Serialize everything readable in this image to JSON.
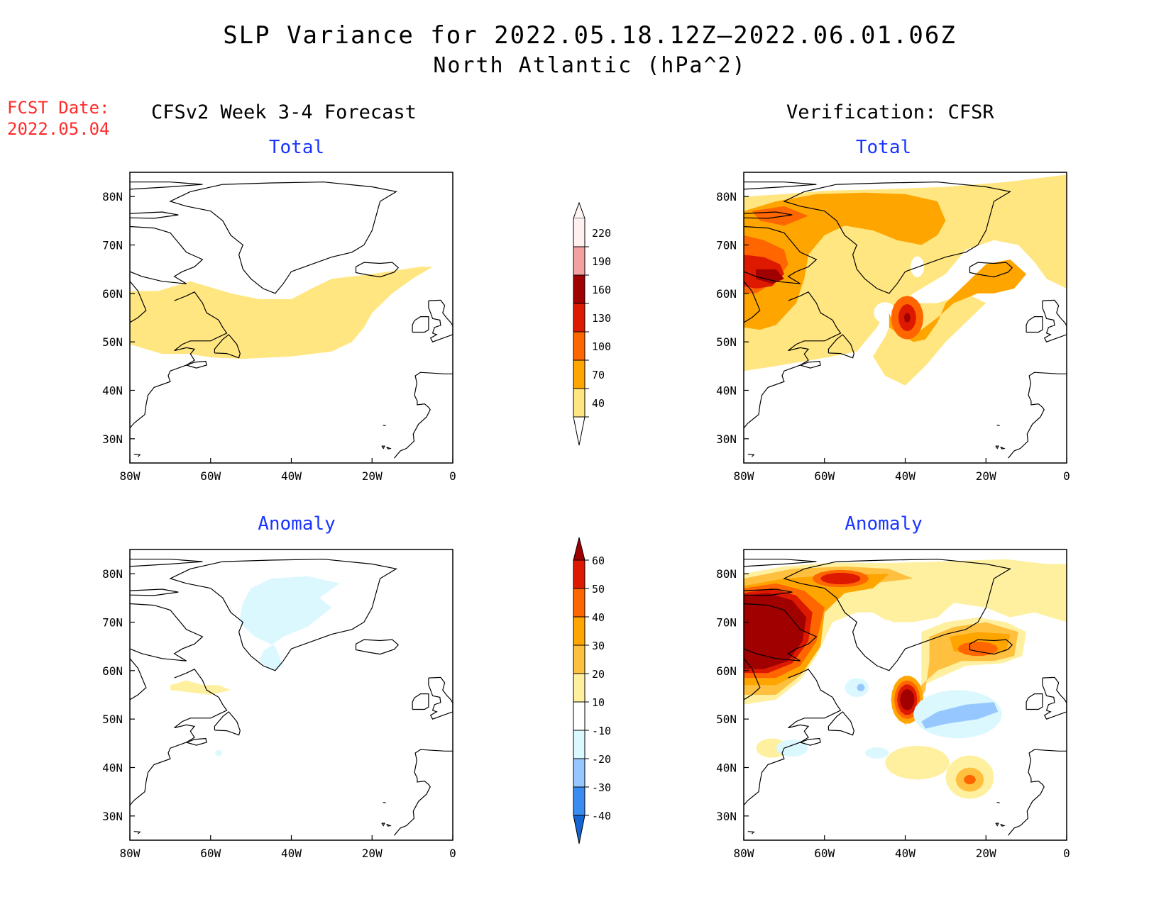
{
  "title": "SLP Variance for 2022.05.18.12Z—2022.06.01.06Z",
  "subtitle": "North Atlantic (hPa^2)",
  "fcst_label": "FCST Date:",
  "fcst_date": "2022.05.04",
  "left_header": "CFSv2 Week 3-4 Forecast",
  "right_header": "Verification: CFSR",
  "panels": [
    {
      "id": "fcst-total",
      "title": "Total"
    },
    {
      "id": "verif-total",
      "title": "Total"
    },
    {
      "id": "fcst-anom",
      "title": "Anomaly"
    },
    {
      "id": "verif-anom",
      "title": "Anomaly"
    }
  ],
  "axes": {
    "lon_labels": [
      "80W",
      "60W",
      "40W",
      "20W",
      "0"
    ],
    "lon_values": [
      -80,
      -60,
      -40,
      -20,
      0
    ],
    "lat_labels": [
      "80N",
      "70N",
      "60N",
      "50N",
      "40N",
      "30N"
    ],
    "lat_values": [
      80,
      70,
      60,
      50,
      40,
      30
    ],
    "lon_range": [
      -80,
      0
    ],
    "lat_range": [
      25,
      85
    ]
  },
  "colorbars": {
    "total": {
      "labels": [
        "220",
        "190",
        "160",
        "130",
        "100",
        "70",
        "40"
      ],
      "colors": [
        "#fff0f0",
        "#f4a0a0",
        "#a00000",
        "#dd1a00",
        "#ff6600",
        "#ffa500",
        "#ffe680"
      ]
    },
    "anomaly": {
      "labels": [
        "60",
        "50",
        "40",
        "30",
        "20",
        "10",
        "-10",
        "-20",
        "-30",
        "-40"
      ],
      "colors": [
        "#a00000",
        "#dd1a00",
        "#ff6600",
        "#ffa500",
        "#ffc040",
        "#fff0a0",
        "#ffffff",
        "#dcf8ff",
        "#96c8ff",
        "#3a8cf0",
        "#1464d2"
      ]
    }
  },
  "chart_data": {
    "type": "heatmap",
    "title": "SLP Variance for 2022.05.18.12Z—2022.06.01.06Z",
    "subtitle": "North Atlantic (hPa^2)",
    "total_levels": [
      40,
      70,
      100,
      130,
      160,
      190,
      220
    ],
    "anomaly_levels": [
      -40,
      -30,
      -20,
      -10,
      10,
      20,
      30,
      40,
      50,
      60
    ],
    "lon_range": [
      -80,
      0
    ],
    "lat_range": [
      25,
      85
    ],
    "panels": [
      {
        "name": "CFSv2 Week 3-4 Forecast — Total",
        "max_level": "40-70",
        "region": "band 45N-62N, 80W-5W"
      },
      {
        "name": "Verification: CFSR — Total",
        "max_level": "160-190",
        "centers": [
          {
            "lon": -68,
            "lat": 64
          },
          {
            "lon": -40,
            "lat": 55
          }
        ]
      },
      {
        "name": "CFSv2 Week 3-4 Forecast — Anomaly",
        "min_level": "-20 to -10",
        "region": "central Greenland"
      },
      {
        "name": "Verification: CFSR — Anomaly",
        "max_level": ">60",
        "min_level": "-30 to -20",
        "centers": [
          {
            "lon": -70,
            "lat": 66
          },
          {
            "lon": -40,
            "lat": 55
          }
        ]
      }
    ]
  }
}
